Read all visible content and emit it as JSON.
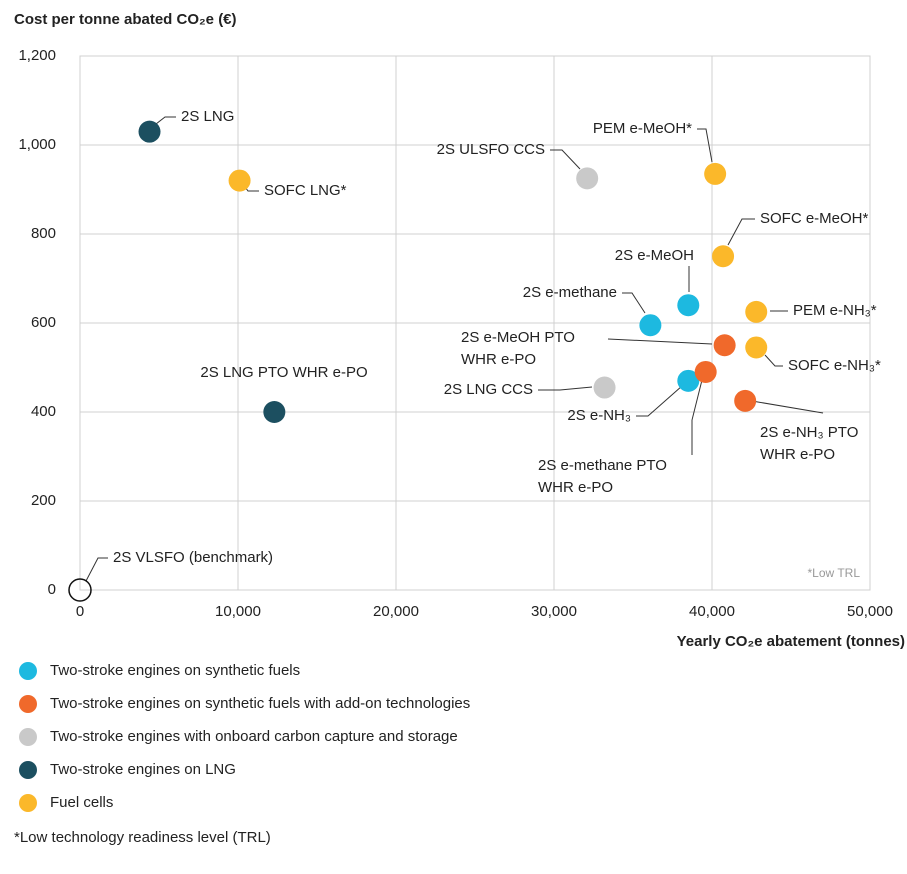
{
  "chart_data": {
    "type": "scatter",
    "title": "Cost per tonne abated CO₂e (€)",
    "x_label": "Yearly CO₂e abatement (tonnes)",
    "xlim": [
      0,
      50000
    ],
    "xticks": [
      0,
      {
        "value": 10000,
        "label": "10,000"
      },
      {
        "value": 20000,
        "label": "20,000"
      },
      {
        "value": 30000,
        "label": "30,000"
      },
      {
        "value": 40000,
        "label": "40,000"
      },
      {
        "value": 50000,
        "label": "50,000"
      }
    ],
    "ylim": [
      0,
      1200
    ],
    "yticks": [
      0,
      200,
      400,
      600,
      800,
      {
        "value": 1000,
        "label": "1,000"
      },
      {
        "value": 1200,
        "label": "1,200"
      }
    ],
    "grid": true,
    "series": [
      {
        "name": "Two-stroke engines on synthetic fuels",
        "color": "#1db9e0",
        "x": [
          38500,
          36100,
          38500
        ],
        "values": [
          640,
          595,
          470
        ],
        "labels": [
          [
            "2S e-MeOH"
          ],
          [
            "2S e-methane"
          ],
          [
            "2S e-NH₃"
          ]
        ]
      },
      {
        "name": "Two-stroke engines on synthetic fuels with add-on technologies",
        "color": "#f0692b",
        "x": [
          40800,
          39600,
          42100
        ],
        "values": [
          550,
          490,
          425
        ],
        "labels": [
          [
            "2S e-MeOH PTO",
            "WHR e-PO"
          ],
          [
            "2S e-methane PTO",
            "WHR e-PO"
          ],
          [
            "2S e-NH₃ PTO",
            "WHR e-PO"
          ]
        ]
      },
      {
        "name": "Two-stroke engines with onboard carbon capture and storage",
        "color": "#c9c9c9",
        "x": [
          32100,
          33200
        ],
        "values": [
          925,
          455
        ],
        "labels": [
          [
            "2S ULSFO CCS"
          ],
          [
            "2S LNG CCS"
          ]
        ]
      },
      {
        "name": "Two-stroke engines on LNG",
        "color": "#1c4f60",
        "x": [
          4400,
          12300
        ],
        "values": [
          1030,
          400
        ],
        "labels": [
          [
            "2S LNG"
          ],
          [
            "2S LNG PTO WHR e-PO"
          ]
        ]
      },
      {
        "name": "Fuel cells",
        "color": "#fbb82a",
        "x": [
          10100,
          40200,
          40700,
          42800,
          42800
        ],
        "values": [
          920,
          935,
          750,
          625,
          545
        ],
        "labels": [
          [
            "SOFC LNG*"
          ],
          [
            "PEM e-MeOH*"
          ],
          [
            "SOFC e-MeOH*"
          ],
          [
            "PEM e-NH₃*"
          ],
          [
            "SOFC e-NH₃*"
          ]
        ]
      }
    ],
    "benchmark": {
      "label": "2S VLSFO (benchmark)",
      "x": 0,
      "y": 0
    },
    "annotation": "*Low TRL",
    "footnote": "*Low technology readiness level (TRL)"
  }
}
